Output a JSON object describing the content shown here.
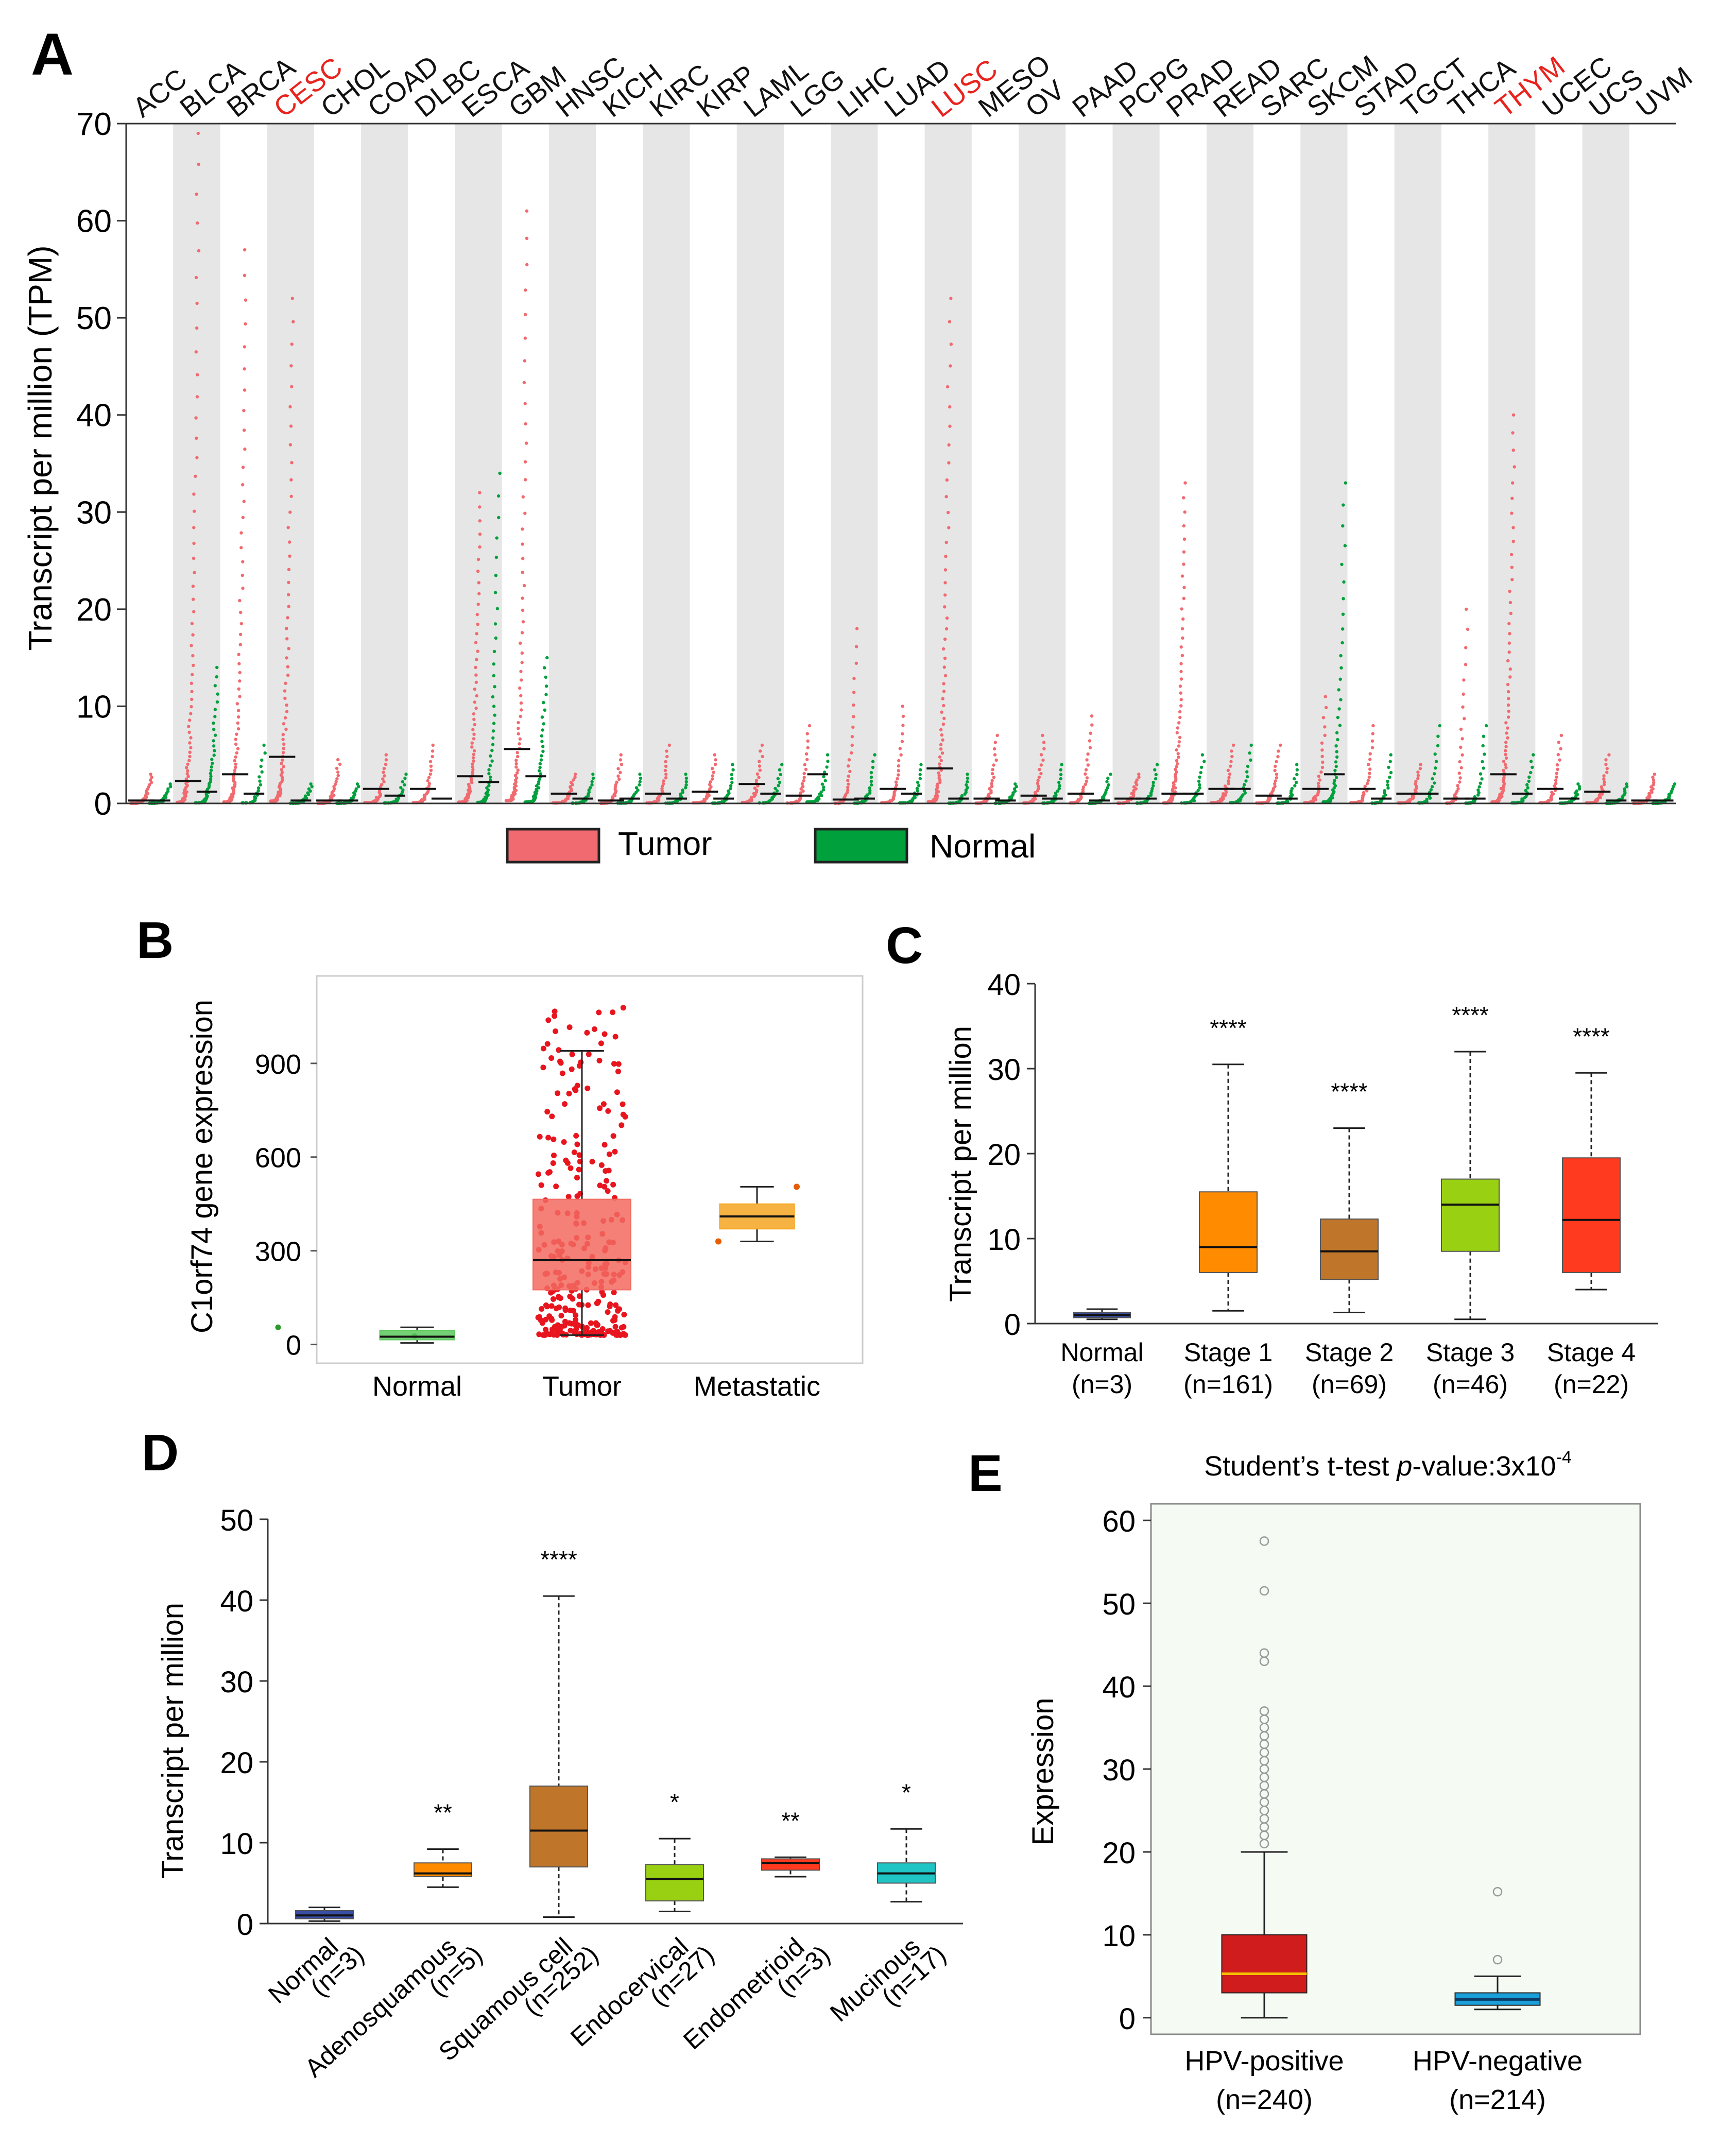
{
  "colors": {
    "tumor": "#f06a70",
    "normal": "#00a03c",
    "highlight": "#e8231e",
    "shade": "#e6e6e6"
  },
  "panel_labels": [
    "A",
    "B",
    "C",
    "D",
    "E"
  ],
  "chart_data": [
    {
      "panel": "A",
      "type": "scatter",
      "ylabel": "Transcript per million (TPM)",
      "ylim": [
        0,
        70
      ],
      "yticks": [
        "0",
        "10",
        "20",
        "30",
        "40",
        "50",
        "60",
        "70"
      ],
      "categories": [
        "ACC",
        "BLCA",
        "BRCA",
        "CESC",
        "CHOL",
        "COAD",
        "DLBC",
        "ESCA",
        "GBM",
        "HNSC",
        "KICH",
        "KIRC",
        "KIRP",
        "LAML",
        "LGG",
        "LIHC",
        "LUAD",
        "LUSC",
        "MESO",
        "OV",
        "PAAD",
        "PCPG",
        "PRAD",
        "READ",
        "SARC",
        "SKCM",
        "STAD",
        "TGCT",
        "THCA",
        "THYM",
        "UCEC",
        "UCS",
        "UVM"
      ],
      "highlighted": [
        "CESC",
        "LUSC",
        "THYM"
      ],
      "tumor_median": [
        0.3,
        2.3,
        3.0,
        4.8,
        0.3,
        1.5,
        1.5,
        2.8,
        5.6,
        1.0,
        0.3,
        1.0,
        1.2,
        2.0,
        0.8,
        0.4,
        1.5,
        3.6,
        0.5,
        0.8,
        1.0,
        0.5,
        1.0,
        1.5,
        0.8,
        1.5,
        1.5,
        1.0,
        0.5,
        3.0,
        1.5,
        1.2,
        0.3
      ],
      "tumor_max": [
        3,
        69,
        57,
        52,
        4.5,
        5,
        6,
        32,
        61,
        3,
        5,
        6,
        5,
        6,
        8,
        18,
        10,
        52,
        7,
        7,
        9,
        3,
        33,
        6,
        6,
        11,
        8,
        4,
        20,
        40,
        7,
        5,
        3
      ],
      "normal_median": [
        0.3,
        1.2,
        1.0,
        0.3,
        0.3,
        0.8,
        0.5,
        2.2,
        2.8,
        0.5,
        0.5,
        0.5,
        0.5,
        1.0,
        3.0,
        0.5,
        1.0,
        0.5,
        0.3,
        0.5,
        0.3,
        0.5,
        1.0,
        1.5,
        0.5,
        3.0,
        0.5,
        1.0,
        0.5,
        1.0,
        0.5,
        0.3,
        0.3
      ],
      "normal_max": [
        2,
        14,
        6,
        2,
        2,
        3,
        0,
        34,
        15,
        3,
        3,
        3,
        4,
        4,
        5,
        5,
        4,
        3,
        2,
        4,
        3,
        4,
        5,
        6,
        4,
        33,
        5,
        8,
        8,
        5,
        2,
        2,
        2
      ],
      "legend": {
        "tumor": "Tumor",
        "normal": "Normal"
      }
    },
    {
      "panel": "B",
      "type": "box",
      "ylabel": "C1orf74 gene expression",
      "yticks": [
        "0",
        "300",
        "600",
        "900"
      ],
      "ylim": [
        -60,
        1180
      ],
      "categories": [
        "Normal",
        "Tumor",
        "Metastatic"
      ],
      "boxes": [
        {
          "min": 5,
          "q1": 15,
          "median": 25,
          "q3": 45,
          "max": 55,
          "color": "#5cc85c"
        },
        {
          "min": 30,
          "q1": 175,
          "median": 270,
          "q3": 465,
          "max": 940,
          "color": "#f26a60"
        },
        {
          "min": 330,
          "q1": 370,
          "median": 410,
          "q3": 450,
          "max": 505,
          "color": "#f5a623"
        }
      ]
    },
    {
      "panel": "C",
      "type": "box",
      "ylabel": "Transcript per million",
      "yticks": [
        "0",
        "10",
        "20",
        "30",
        "40"
      ],
      "ylim": [
        0,
        40
      ],
      "categories": [
        "Normal",
        "Stage 1",
        "Stage 2",
        "Stage 3",
        "Stage 4"
      ],
      "n_labels": [
        "(n=3)",
        "(n=161)",
        "(n=69)",
        "(n=46)",
        "(n=22)"
      ],
      "significance": [
        "",
        "****",
        "****",
        "****",
        "****"
      ],
      "boxes": [
        {
          "min": 0.5,
          "q1": 0.7,
          "median": 1.0,
          "q3": 1.3,
          "max": 1.7,
          "color": "#3a4ea3"
        },
        {
          "min": 1.5,
          "q1": 6.0,
          "median": 9.0,
          "q3": 15.5,
          "max": 30.5,
          "color": "#ff8c00"
        },
        {
          "min": 1.3,
          "q1": 5.2,
          "median": 8.5,
          "q3": 12.3,
          "max": 23.0,
          "color": "#c0762a"
        },
        {
          "min": 0.5,
          "q1": 8.5,
          "median": 14.0,
          "q3": 17.0,
          "max": 32.0,
          "color": "#99d112"
        },
        {
          "min": 4.0,
          "q1": 6.0,
          "median": 12.2,
          "q3": 19.5,
          "max": 29.5,
          "color": "#ff3a1e"
        }
      ]
    },
    {
      "panel": "D",
      "type": "box",
      "ylabel": "Transcript per million",
      "yticks": [
        "0",
        "10",
        "20",
        "30",
        "40",
        "50"
      ],
      "ylim": [
        0,
        50
      ],
      "categories": [
        "Normal",
        "Adenosquamous",
        "Squamous cell",
        "Endocervical",
        "Endometrioid",
        "Mucinous"
      ],
      "n_labels": [
        "(n=3)",
        "(n=5)",
        "(n=252)",
        "(n=27)",
        "(n=3)",
        "(n=17)"
      ],
      "significance": [
        "",
        "**",
        "****",
        "*",
        "**",
        "*"
      ],
      "boxes": [
        {
          "min": 0.3,
          "q1": 0.6,
          "median": 1.0,
          "q3": 1.6,
          "max": 2.0,
          "color": "#3a4ea3"
        },
        {
          "min": 4.5,
          "q1": 5.8,
          "median": 6.2,
          "q3": 7.5,
          "max": 9.2,
          "color": "#ff8c00"
        },
        {
          "min": 0.8,
          "q1": 7.0,
          "median": 11.5,
          "q3": 17.0,
          "max": 40.5,
          "color": "#c0762a"
        },
        {
          "min": 1.5,
          "q1": 2.8,
          "median": 5.5,
          "q3": 7.3,
          "max": 10.5,
          "color": "#99d112"
        },
        {
          "min": 5.8,
          "q1": 6.6,
          "median": 7.5,
          "q3": 8.0,
          "max": 8.2,
          "color": "#ff3a1e"
        },
        {
          "min": 2.7,
          "q1": 5.0,
          "median": 6.2,
          "q3": 7.5,
          "max": 11.7,
          "color": "#1fc4c4"
        }
      ]
    },
    {
      "panel": "E",
      "type": "box",
      "title_prefix": "Student’s t-test ",
      "title_italic": "p",
      "title_suffix": "-value:3x10",
      "title_exp": "-4",
      "ylabel": "Expression",
      "yticks": [
        "0",
        "10",
        "20",
        "30",
        "40",
        "50",
        "60"
      ],
      "ylim": [
        -2,
        62
      ],
      "categories": [
        "HPV-positive",
        "HPV-negative"
      ],
      "n_labels": [
        "(n=240)",
        "(n=214)"
      ],
      "boxes": [
        {
          "min": 0,
          "q1": 3.0,
          "median": 5.3,
          "q3": 10.0,
          "max": 20.0,
          "color": "#d01c1c",
          "median_color": "#f5c000",
          "outliers": [
            21,
            22,
            23,
            24,
            25,
            26,
            27,
            28,
            29,
            30,
            31,
            32,
            33,
            34,
            35,
            36,
            37,
            43,
            44,
            51.5,
            57.5
          ]
        },
        {
          "min": 1.0,
          "q1": 1.5,
          "median": 2.2,
          "q3": 3.0,
          "max": 5.0,
          "color": "#1b9fd8",
          "median_color": "#0b3b66",
          "outliers": [
            7,
            15.2
          ]
        }
      ]
    }
  ]
}
